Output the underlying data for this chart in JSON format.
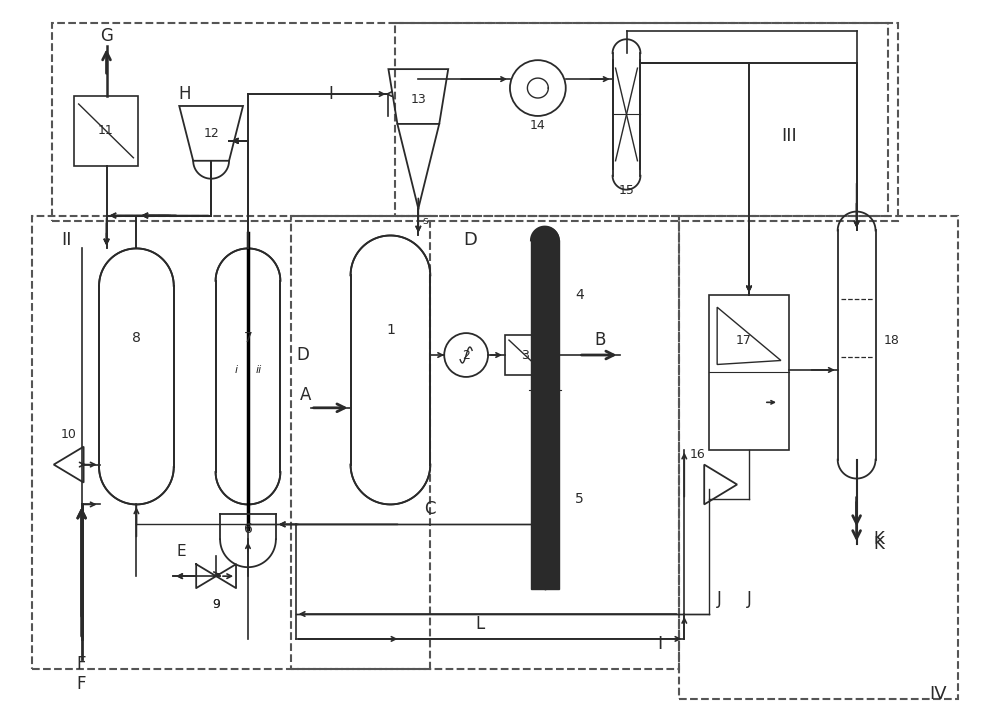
{
  "bg_color": "#ffffff",
  "lc": "#2a2a2a",
  "fig_w": 10.0,
  "fig_h": 7.18,
  "dpi": 100,
  "xlim": [
    0,
    1000
  ],
  "ylim": [
    0,
    718
  ]
}
